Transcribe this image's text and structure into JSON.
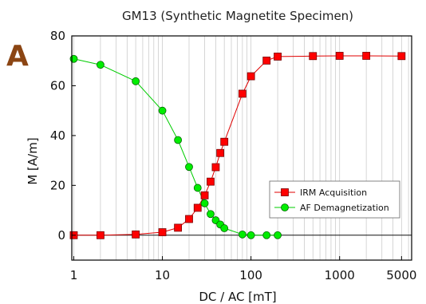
{
  "panel_label": "A",
  "panel_color": "#8B4513",
  "chart_data": {
    "type": "scatter",
    "title": "GM13 (Synthetic Magnetite Specimen)",
    "xlabel": "DC / AC [mT]",
    "ylabel": "M [A/m]",
    "xscale": "log",
    "xlim": [
      0.95,
      6500
    ],
    "ylim": [
      -10,
      80
    ],
    "xticks": [
      1,
      10,
      100,
      1000,
      5000
    ],
    "xtick_labels": [
      "1",
      "10",
      "100",
      "1000",
      "5000"
    ],
    "yticks": [
      0,
      20,
      40,
      60,
      80
    ],
    "ytick_labels": [
      "0",
      "20",
      "40",
      "60",
      "80"
    ],
    "grid": "vertical minor",
    "legend_position": "lower-right",
    "series": [
      {
        "name": "IRM Acquisition",
        "marker": "square",
        "color": "#ff0000",
        "x": [
          1,
          2,
          5,
          10,
          15,
          20,
          25,
          30,
          35,
          40,
          45,
          50,
          80,
          100,
          150,
          200,
          500,
          1000,
          2000,
          5000
        ],
        "y": [
          0,
          0,
          0.3,
          1.2,
          3,
          6.5,
          11,
          16,
          21.5,
          27.3,
          33,
          37.5,
          56.8,
          63.8,
          70.1,
          71.7,
          71.9,
          72,
          72,
          71.9
        ]
      },
      {
        "name": "AF Demagnetization",
        "marker": "circle",
        "color": "#00ee00",
        "x": [
          1,
          2,
          5,
          10,
          15,
          20,
          25,
          30,
          35,
          40,
          45,
          50,
          80,
          100,
          150,
          200
        ],
        "y": [
          70.8,
          68.4,
          61.8,
          50,
          38.2,
          27.4,
          19,
          12.8,
          8.5,
          6,
          4.3,
          2.8,
          0.3,
          0,
          0,
          0
        ]
      }
    ]
  }
}
